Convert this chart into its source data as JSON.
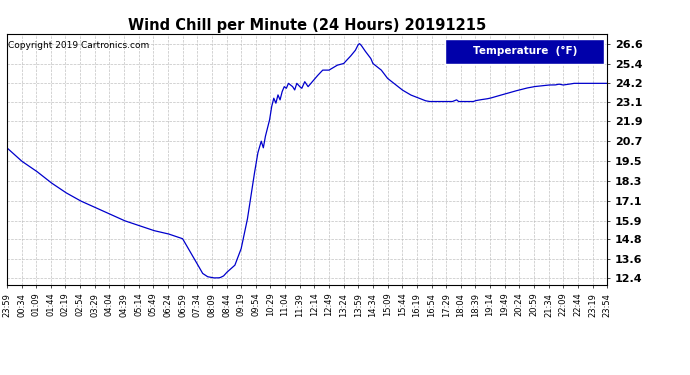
{
  "title": "Wind Chill per Minute (24 Hours) 20191215",
  "copyright": "Copyright 2019 Cartronics.com",
  "legend_label": "Temperature  (°F)",
  "line_color": "#0000CC",
  "background_color": "#ffffff",
  "grid_color": "#bbbbbb",
  "yticks": [
    12.4,
    13.6,
    14.8,
    15.9,
    17.1,
    18.3,
    19.5,
    20.7,
    21.9,
    23.1,
    24.2,
    25.4,
    26.6
  ],
  "ylim": [
    12.0,
    27.2
  ],
  "xtick_labels": [
    "23:59",
    "00:34",
    "01:09",
    "01:44",
    "02:19",
    "02:54",
    "03:29",
    "04:04",
    "04:39",
    "05:14",
    "05:49",
    "06:24",
    "06:59",
    "07:34",
    "08:09",
    "08:44",
    "09:19",
    "09:54",
    "10:29",
    "11:04",
    "11:39",
    "12:14",
    "12:49",
    "13:24",
    "13:59",
    "14:34",
    "15:09",
    "15:44",
    "16:19",
    "16:54",
    "17:29",
    "18:04",
    "18:39",
    "19:14",
    "19:49",
    "20:24",
    "20:59",
    "21:34",
    "22:09",
    "22:44",
    "23:19",
    "23:54"
  ],
  "keypoints": [
    [
      0,
      20.3
    ],
    [
      35,
      19.5
    ],
    [
      70,
      18.9
    ],
    [
      105,
      18.2
    ],
    [
      140,
      17.6
    ],
    [
      175,
      17.1
    ],
    [
      210,
      16.7
    ],
    [
      245,
      16.3
    ],
    [
      280,
      15.9
    ],
    [
      315,
      15.6
    ],
    [
      350,
      15.3
    ],
    [
      385,
      15.1
    ],
    [
      420,
      14.8
    ],
    [
      450,
      13.5
    ],
    [
      468,
      12.7
    ],
    [
      480,
      12.5
    ],
    [
      490,
      12.45
    ],
    [
      495,
      12.43
    ],
    [
      500,
      12.43
    ],
    [
      505,
      12.43
    ],
    [
      510,
      12.45
    ],
    [
      518,
      12.55
    ],
    [
      525,
      12.75
    ],
    [
      545,
      13.2
    ],
    [
      560,
      14.2
    ],
    [
      575,
      16.0
    ],
    [
      590,
      18.5
    ],
    [
      600,
      20.0
    ],
    [
      608,
      20.7
    ],
    [
      613,
      20.3
    ],
    [
      618,
      21.0
    ],
    [
      623,
      21.5
    ],
    [
      628,
      22.0
    ],
    [
      633,
      22.8
    ],
    [
      638,
      23.3
    ],
    [
      643,
      23.0
    ],
    [
      648,
      23.5
    ],
    [
      653,
      23.2
    ],
    [
      658,
      23.7
    ],
    [
      663,
      24.0
    ],
    [
      668,
      23.9
    ],
    [
      673,
      24.2
    ],
    [
      678,
      24.1
    ],
    [
      683,
      24.0
    ],
    [
      688,
      23.8
    ],
    [
      693,
      24.2
    ],
    [
      700,
      24.0
    ],
    [
      705,
      23.9
    ],
    [
      712,
      24.3
    ],
    [
      720,
      24.0
    ],
    [
      730,
      24.3
    ],
    [
      740,
      24.6
    ],
    [
      755,
      25.0
    ],
    [
      770,
      25.0
    ],
    [
      790,
      25.3
    ],
    [
      805,
      25.4
    ],
    [
      820,
      25.8
    ],
    [
      833,
      26.2
    ],
    [
      840,
      26.55
    ],
    [
      843,
      26.6
    ],
    [
      847,
      26.5
    ],
    [
      855,
      26.2
    ],
    [
      870,
      25.7
    ],
    [
      875,
      25.4
    ],
    [
      895,
      25.0
    ],
    [
      910,
      24.5
    ],
    [
      930,
      24.1
    ],
    [
      945,
      23.8
    ],
    [
      965,
      23.5
    ],
    [
      980,
      23.35
    ],
    [
      1000,
      23.15
    ],
    [
      1010,
      23.1
    ],
    [
      1015,
      23.1
    ],
    [
      1050,
      23.1
    ],
    [
      1060,
      23.1
    ],
    [
      1065,
      23.1
    ],
    [
      1070,
      23.15
    ],
    [
      1075,
      23.2
    ],
    [
      1080,
      23.1
    ],
    [
      1085,
      23.1
    ],
    [
      1090,
      23.1
    ],
    [
      1095,
      23.1
    ],
    [
      1100,
      23.1
    ],
    [
      1110,
      23.1
    ],
    [
      1115,
      23.1
    ],
    [
      1120,
      23.15
    ],
    [
      1130,
      23.2
    ],
    [
      1145,
      23.25
    ],
    [
      1155,
      23.3
    ],
    [
      1175,
      23.45
    ],
    [
      1190,
      23.55
    ],
    [
      1210,
      23.7
    ],
    [
      1225,
      23.8
    ],
    [
      1240,
      23.9
    ],
    [
      1260,
      24.0
    ],
    [
      1280,
      24.05
    ],
    [
      1295,
      24.1
    ],
    [
      1310,
      24.1
    ],
    [
      1320,
      24.15
    ],
    [
      1330,
      24.1
    ],
    [
      1345,
      24.15
    ],
    [
      1355,
      24.2
    ],
    [
      1365,
      24.2
    ],
    [
      1385,
      24.2
    ],
    [
      1400,
      24.2
    ],
    [
      1415,
      24.2
    ],
    [
      1435,
      24.2
    ]
  ]
}
